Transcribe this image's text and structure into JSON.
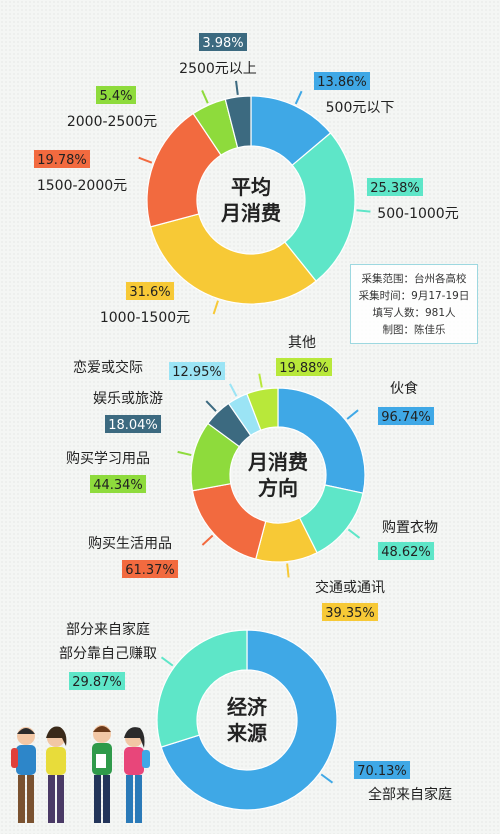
{
  "info": {
    "scope": "采集范围：台州各高校",
    "time": "采集时间：9月17-19日",
    "count": "填写人数：981人",
    "author": "制图：陈佳乐"
  },
  "chart_data": [
    {
      "type": "pie",
      "center_label": [
        "平均",
        "月消费"
      ],
      "slices": [
        {
          "label": "500元以下",
          "value": 13.86,
          "text": "13.86%",
          "color": "#3fa8e6"
        },
        {
          "label": "500-1000元",
          "value": 25.38,
          "text": "25.38%",
          "color": "#5ee6c8"
        },
        {
          "label": "1000-1500元",
          "value": 31.6,
          "text": "31.6%",
          "color": "#f7c936"
        },
        {
          "label": "1500-2000元",
          "value": 19.78,
          "text": "19.78%",
          "color": "#f26a3f"
        },
        {
          "label": "2000-2500元",
          "value": 5.4,
          "text": "5.4%",
          "color": "#8edb3c"
        },
        {
          "label": "2500元以上",
          "value": 3.98,
          "text": "3.98%",
          "color": "#3c6a80"
        }
      ]
    },
    {
      "type": "pie",
      "center_label": [
        "月消费",
        "方向"
      ],
      "slices": [
        {
          "label": "伙食",
          "value": 96.74,
          "text": "96.74%",
          "color": "#3fa8e6"
        },
        {
          "label": "购置衣物",
          "value": 48.62,
          "text": "48.62%",
          "color": "#5ee6c8"
        },
        {
          "label": "交通或通讯",
          "value": 39.35,
          "text": "39.35%",
          "color": "#f7c936"
        },
        {
          "label": "购买生活用品",
          "value": 61.37,
          "text": "61.37%",
          "color": "#f26a3f"
        },
        {
          "label": "购买学习用品",
          "value": 44.34,
          "text": "44.34%",
          "color": "#8edb3c"
        },
        {
          "label": "娱乐或旅游",
          "value": 18.04,
          "text": "18.04%",
          "color": "#3c6a80"
        },
        {
          "label": "恋爱或交际",
          "value": 12.95,
          "text": "12.95%",
          "color": "#9be4f5"
        },
        {
          "label": "其他",
          "value": 19.88,
          "text": "19.88%",
          "color": "#b8e83a"
        }
      ]
    },
    {
      "type": "pie",
      "center_label": [
        "经济",
        "来源"
      ],
      "slices": [
        {
          "label": "全部来自家庭",
          "value": 70.13,
          "text": "70.13%",
          "color": "#3fa8e6"
        },
        {
          "label": "部分来自家庭 部分靠自己赚取",
          "value": 29.87,
          "text": "29.87%",
          "color": "#5ee6c8"
        }
      ]
    }
  ]
}
